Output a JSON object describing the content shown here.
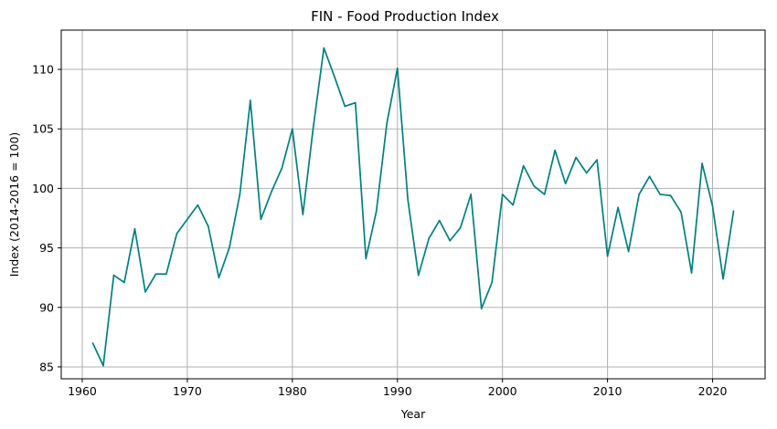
{
  "chart_data": {
    "type": "line",
    "title": "FIN - Food Production Index",
    "xlabel": "Year",
    "ylabel": "Index (2014-2016 = 100)",
    "xlim": [
      1958,
      2025
    ],
    "ylim": [
      84,
      113.3
    ],
    "xticks": [
      1960,
      1970,
      1980,
      1990,
      2000,
      2010,
      2020
    ],
    "yticks": [
      85,
      90,
      95,
      100,
      105,
      110
    ],
    "grid": true,
    "line_color": "#008080",
    "series": [
      {
        "x": [
          1961,
          1962,
          1963,
          1964,
          1965,
          1966,
          1967,
          1968,
          1969,
          1970,
          1971,
          1972,
          1973,
          1974,
          1975,
          1976,
          1977,
          1978,
          1979,
          1980,
          1981,
          1982,
          1983,
          1984,
          1985,
          1986,
          1987,
          1988,
          1989,
          1990,
          1991,
          1992,
          1993,
          1994,
          1995,
          1996,
          1997,
          1998,
          1999,
          2000,
          2001,
          2002,
          2003,
          2004,
          2005,
          2006,
          2007,
          2008,
          2009,
          2010,
          2011,
          2012,
          2013,
          2014,
          2015,
          2016,
          2017,
          2018,
          2019,
          2020,
          2021,
          2022
        ],
        "values": [
          87.0,
          85.1,
          92.7,
          92.1,
          96.6,
          91.3,
          92.8,
          92.8,
          96.2,
          97.4,
          98.6,
          96.8,
          92.5,
          95.0,
          99.5,
          107.4,
          97.4,
          99.7,
          101.7,
          105.0,
          97.8,
          105.2,
          111.8,
          109.4,
          106.9,
          107.2,
          94.1,
          98.1,
          105.5,
          110.1,
          99.0,
          92.7,
          95.8,
          97.3,
          95.6,
          96.7,
          99.5,
          89.9,
          92.1,
          99.5,
          98.6,
          101.9,
          100.2,
          99.5,
          103.2,
          100.4,
          102.6,
          101.3,
          102.4,
          94.3,
          98.4,
          94.7,
          99.5,
          101.0,
          99.5,
          99.4,
          98.0,
          92.9,
          102.1,
          98.5,
          92.4,
          98.1
        ]
      }
    ]
  }
}
